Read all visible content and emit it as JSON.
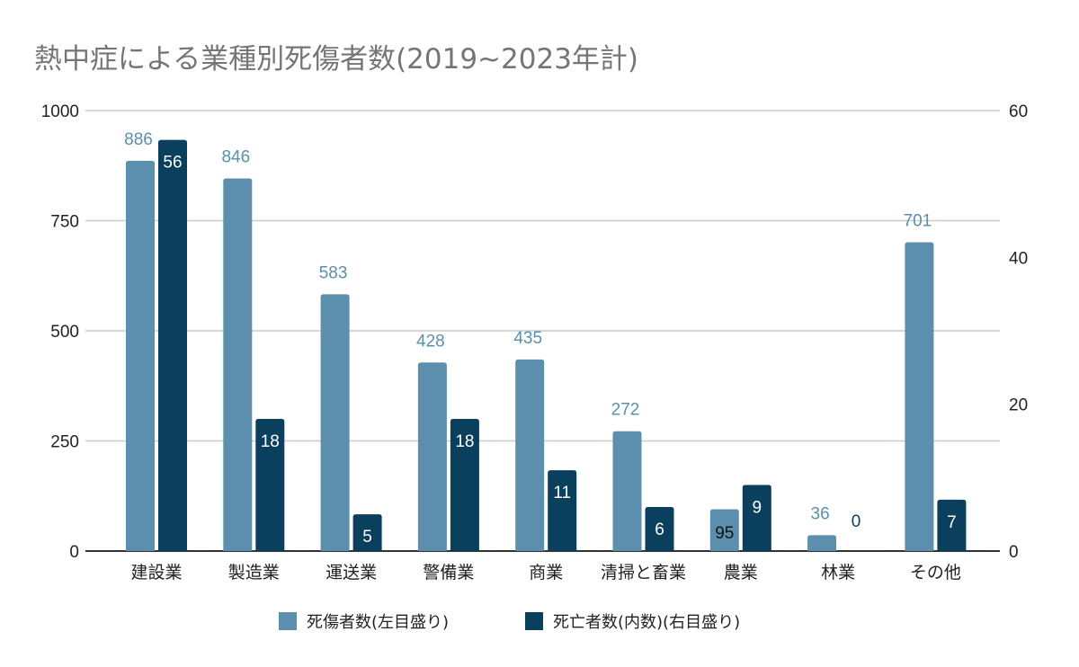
{
  "chart_data": {
    "type": "bar",
    "title": "熱中症による業種別死傷者数(2019~2023年計)",
    "categories": [
      "建設業",
      "製造業",
      "運送業",
      "警備業",
      "商業",
      "清掃と畜業",
      "農業",
      "林業",
      "その他"
    ],
    "series": [
      {
        "name": "死傷者数(左目盛り)",
        "axis": "left",
        "color": "#5b8fad",
        "values": [
          886,
          846,
          583,
          428,
          435,
          272,
          95,
          36,
          701
        ]
      },
      {
        "name": "死亡者数(内数)(右目盛り)",
        "axis": "right",
        "color": "#0b3f5e",
        "values": [
          56,
          18,
          5,
          18,
          11,
          6,
          9,
          0,
          7
        ]
      }
    ],
    "y_left": {
      "range": [
        0,
        1000
      ],
      "ticks": [
        0,
        250,
        500,
        750,
        1000
      ]
    },
    "y_right": {
      "range": [
        0,
        60
      ],
      "ticks": [
        0,
        20,
        40,
        60
      ]
    },
    "grid": true,
    "legend": "bottom",
    "data_labels": true
  }
}
